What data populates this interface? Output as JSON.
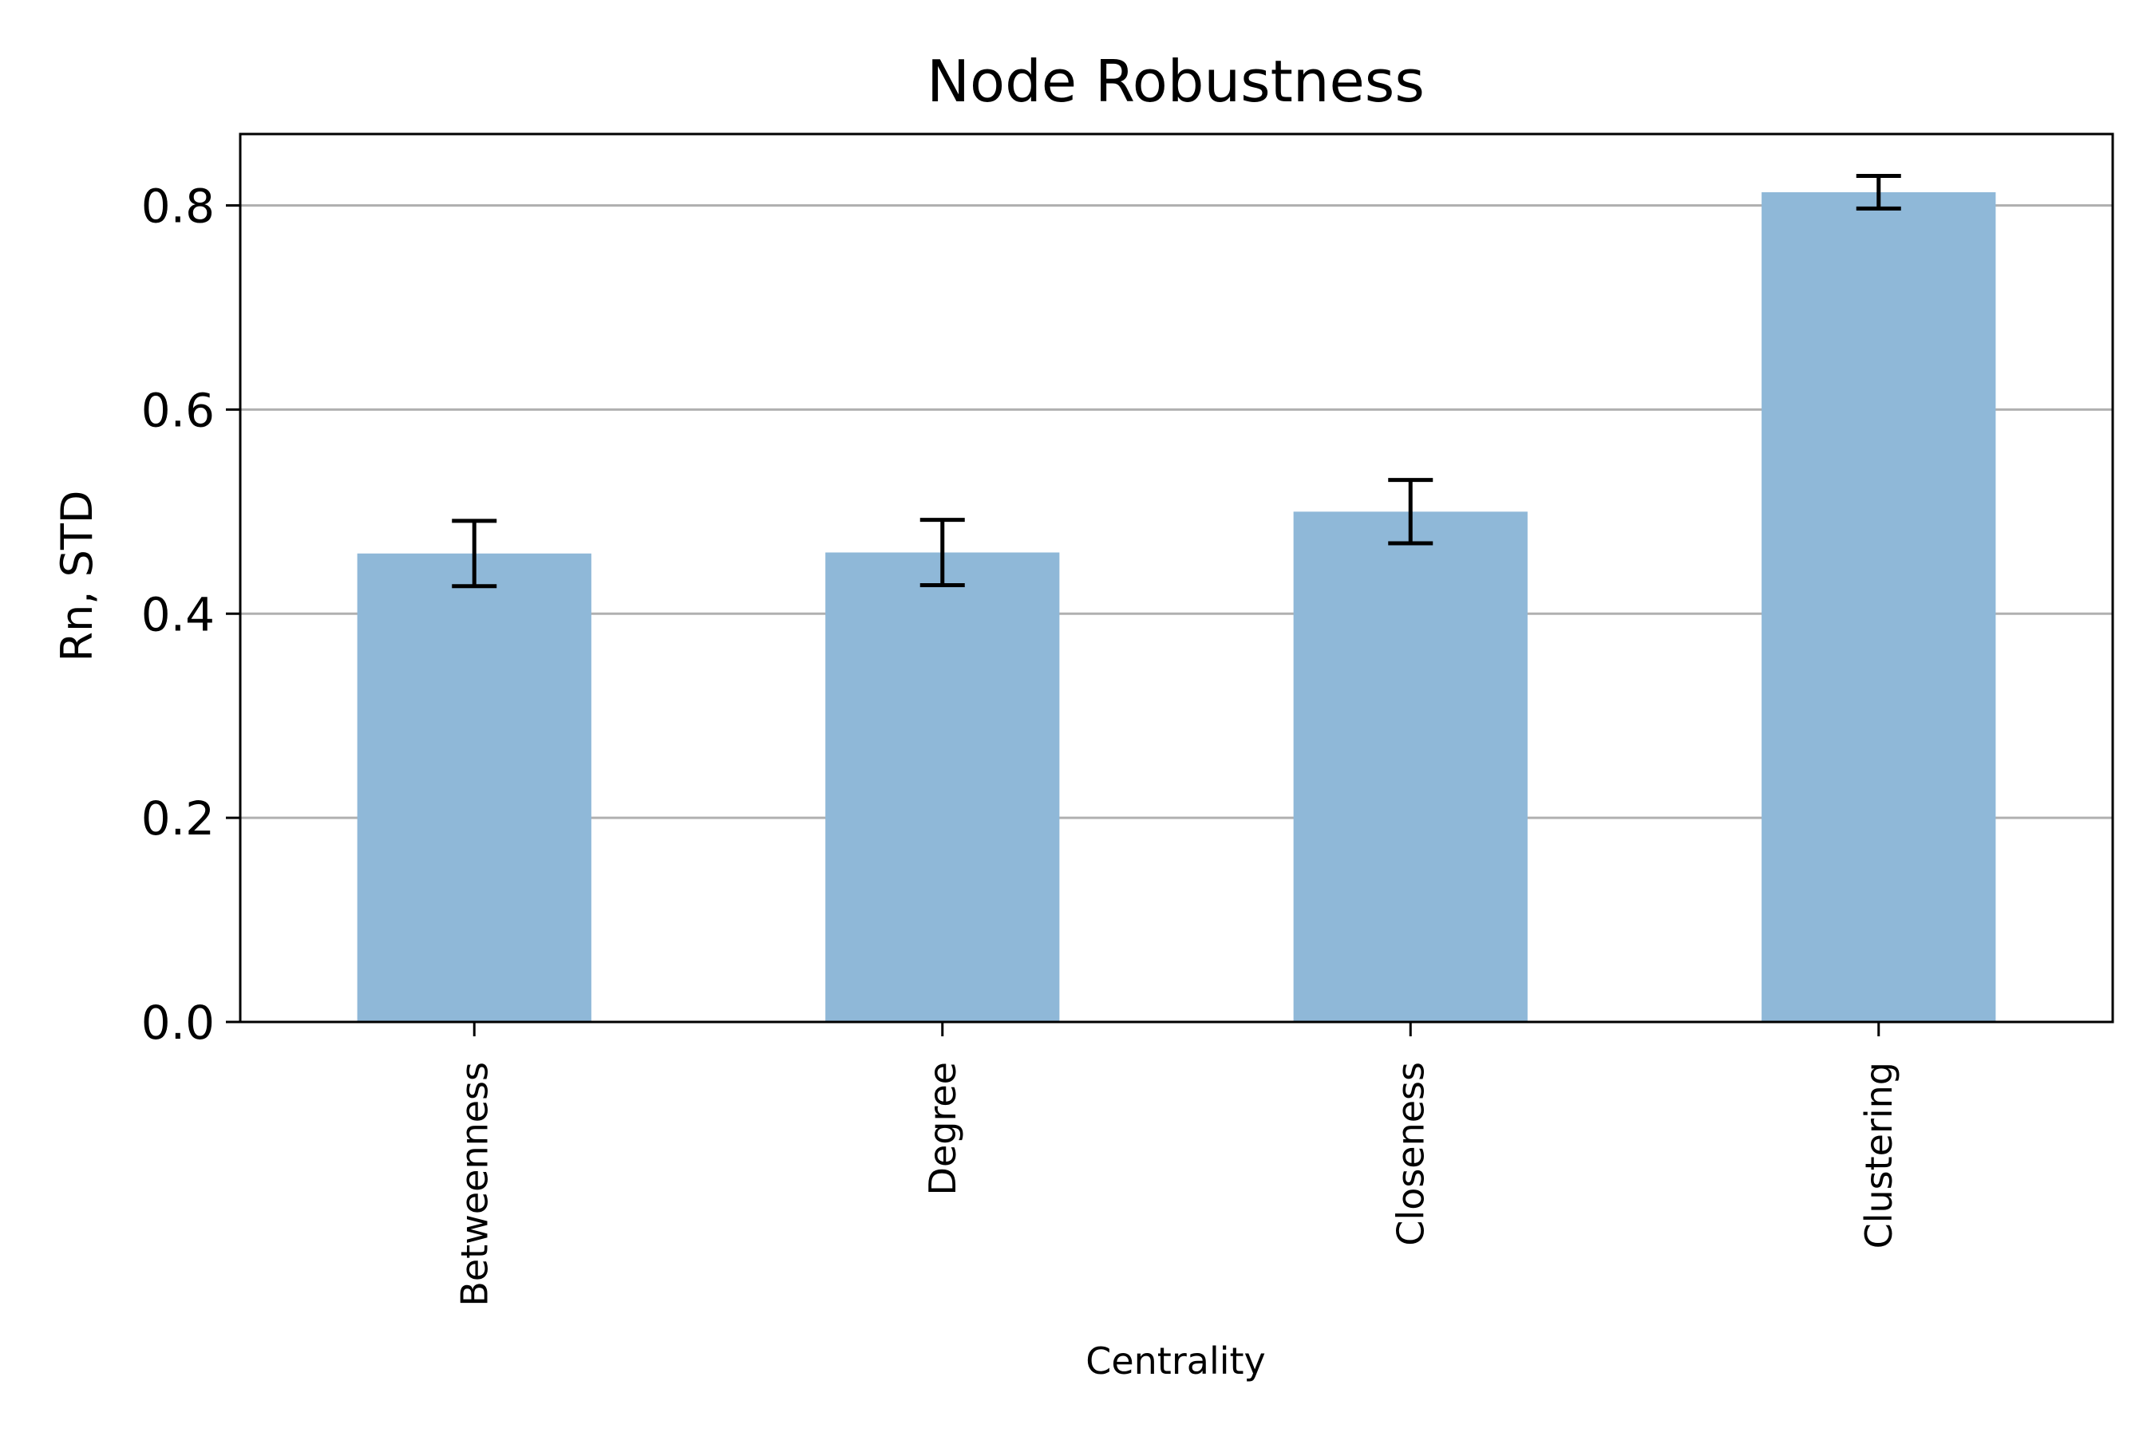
{
  "chart_data": {
    "type": "bar",
    "title": "Node Robustness",
    "xlabel": "Centrality",
    "ylabel": "Rn, STD",
    "categories": [
      "Betweenness",
      "Degree",
      "Closeness",
      "Clustering"
    ],
    "values": [
      0.459,
      0.46,
      0.5,
      0.813
    ],
    "errors": [
      0.032,
      0.032,
      0.031,
      0.016
    ],
    "ylim": [
      0,
      0.87
    ],
    "yticks": [
      0.0,
      0.2,
      0.4,
      0.6,
      0.8
    ],
    "ytick_labels": [
      "0.0",
      "0.2",
      "0.4",
      "0.6",
      "0.8"
    ],
    "grid": "y",
    "bar_color": "#8fb8d8",
    "grid_color": "#b0b0b0",
    "error_color": "#000000"
  }
}
